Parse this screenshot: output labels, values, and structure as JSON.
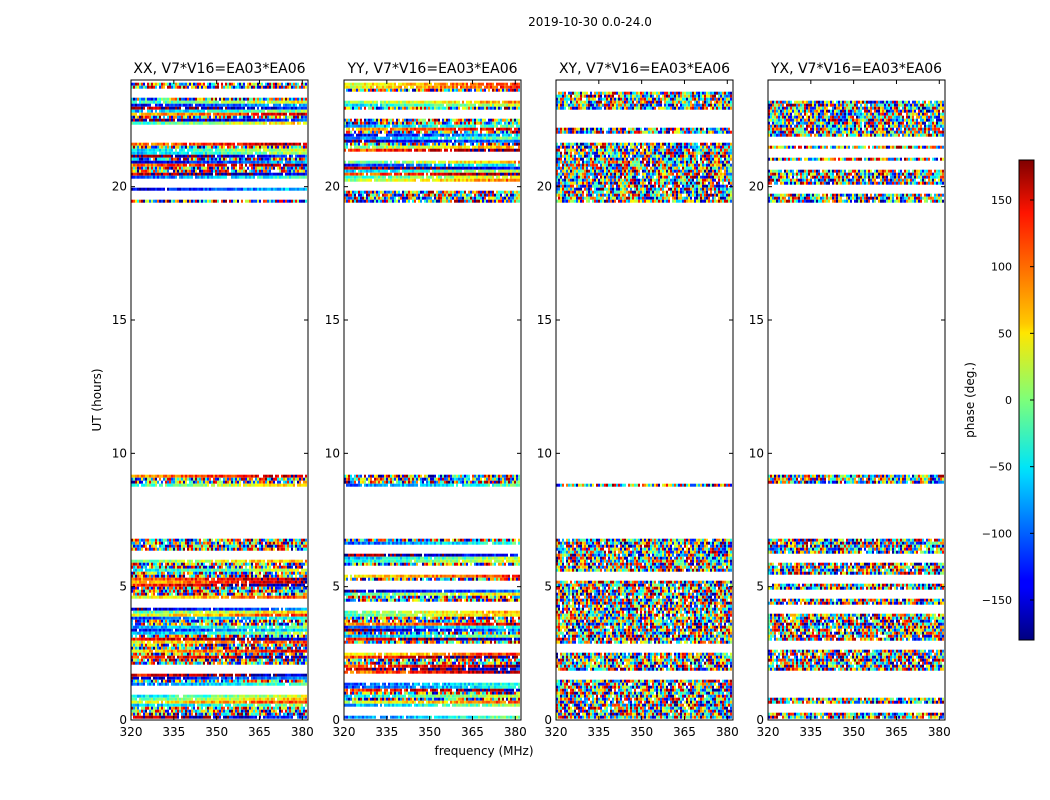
{
  "chart_data": {
    "type": "heatmap",
    "title": "2019-10-30 0.0-24.0",
    "xlabel": "frequency (MHz)",
    "ylabel": "UT (hours)",
    "xlim": [
      320,
      382
    ],
    "ylim": [
      0,
      24
    ],
    "xticks": [
      320,
      335,
      350,
      365,
      380
    ],
    "yticks": [
      0,
      5,
      10,
      15,
      20
    ],
    "panels": [
      {
        "title": "XX, V7*V16=EA03*EA06",
        "coherent": true
      },
      {
        "title": "YY, V7*V16=EA03*EA06",
        "coherent": true
      },
      {
        "title": "XY, V7*V16=EA03*EA06",
        "coherent": false
      },
      {
        "title": "YX, V7*V16=EA03*EA06",
        "coherent": false
      }
    ],
    "data_segments_ut": [
      [
        0.1,
        6.8
      ],
      [
        8.8,
        9.2
      ],
      [
        19.4,
        23.9
      ]
    ],
    "colorbar": {
      "label": "phase (deg.)",
      "range": [
        -180,
        180
      ],
      "ticks": [
        150,
        100,
        50,
        0,
        -50,
        -100,
        -150
      ],
      "colormap": "jet"
    }
  }
}
